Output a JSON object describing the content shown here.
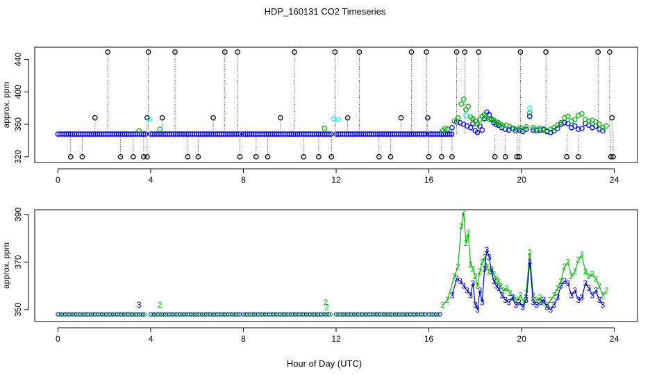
{
  "title": "HDP_160131  CO2 Timeseries",
  "xlabel": "Hour of Day (UTC)",
  "chart_data": [
    {
      "type": "scatter",
      "ylabel": "approx. ppm",
      "xlim": [
        -1,
        25
      ],
      "ylim": [
        313,
        455
      ],
      "xticks": [
        0,
        4,
        8,
        12,
        16,
        20,
        24
      ],
      "yticks": [
        320,
        360,
        400,
        440
      ],
      "drop_lines": true,
      "colors": {
        "outlier": "#000000",
        "baseline": "#0000ff",
        "green": "#00bb00",
        "cyan": "#00ffff"
      },
      "baseline_ppm": 348,
      "baseline_segments": [
        [
          0.0,
          3.8
        ],
        [
          4.0,
          7.9
        ],
        [
          8.0,
          11.8
        ],
        [
          12.0,
          15.9
        ],
        [
          16.0,
          17.0
        ]
      ],
      "outliers_high": [
        2.15,
        3.9,
        5.05,
        7.2,
        7.75,
        10.2,
        11.95,
        13.0,
        15.25,
        15.9,
        17.2,
        17.55,
        18.15,
        19.95,
        21.05,
        23.3,
        23.8
      ],
      "outliers_low": [
        0.55,
        1.05,
        2.7,
        3.25,
        3.7,
        3.85,
        5.6,
        6.05,
        7.85,
        8.55,
        9.05,
        10.6,
        11.25,
        11.8,
        13.85,
        14.35,
        16.0,
        16.55,
        17.0,
        18.85,
        19.3,
        19.8,
        19.9,
        21.95,
        22.45,
        23.85,
        23.95
      ],
      "outliers_mid": [
        {
          "x": 1.6,
          "y": 368
        },
        {
          "x": 4.5,
          "y": 368
        },
        {
          "x": 6.7,
          "y": 368
        },
        {
          "x": 9.6,
          "y": 368
        },
        {
          "x": 12.5,
          "y": 368
        },
        {
          "x": 14.8,
          "y": 368
        },
        {
          "x": 15.95,
          "y": 368
        },
        {
          "x": 3.85,
          "y": 368
        },
        {
          "x": 23.9,
          "y": 368
        }
      ],
      "cyan_points": [
        {
          "x": 3.95,
          "y": 366
        },
        {
          "x": 12.1,
          "y": 366
        },
        {
          "x": 11.9,
          "y": 367
        },
        {
          "x": 20.35,
          "y": 380
        },
        {
          "x": 17.6,
          "y": 371
        }
      ],
      "green_small": [
        {
          "x": 4.4,
          "y": 354
        },
        {
          "x": 11.5,
          "y": 355
        },
        {
          "x": 16.7,
          "y": 355
        },
        {
          "x": 3.5,
          "y": 352
        }
      ]
    },
    {
      "type": "line",
      "ylabel": "approx. ppm",
      "xlim": [
        -1,
        25
      ],
      "ylim": [
        345,
        392
      ],
      "xticks": [
        0,
        4,
        8,
        12,
        16,
        20,
        24
      ],
      "yticks": [
        350,
        370,
        390
      ],
      "series": [
        {
          "name": "2",
          "color": "#00bb00",
          "x": [
            16.6,
            16.8,
            17.1,
            17.25,
            17.4,
            17.5,
            17.6,
            17.7,
            17.8,
            17.9,
            18.0,
            18.1,
            18.2,
            18.3,
            18.4,
            18.5,
            18.6,
            18.7,
            18.8,
            18.9,
            19.0,
            19.1,
            19.2,
            19.35,
            19.5,
            19.65,
            19.8,
            19.95,
            20.1,
            20.2,
            20.35,
            20.5,
            20.65,
            20.8,
            20.95,
            21.1,
            21.25,
            21.4,
            21.55,
            21.7,
            21.85,
            22.0,
            22.15,
            22.3,
            22.45,
            22.6,
            22.75,
            22.9,
            23.05,
            23.2,
            23.35,
            23.5,
            23.65
          ],
          "y": [
            352,
            354,
            364,
            368,
            385,
            391,
            378,
            382,
            369,
            367,
            364,
            360,
            366,
            370,
            372,
            368,
            366,
            367,
            365,
            363,
            362,
            360,
            358,
            359,
            357,
            355,
            354,
            356,
            353,
            357,
            374,
            356,
            354,
            355,
            353,
            352,
            354,
            356,
            359,
            362,
            368,
            370,
            364,
            366,
            371,
            373,
            366,
            364,
            365,
            363,
            360,
            356,
            358
          ]
        },
        {
          "name": "3",
          "color": "#0000cc",
          "x": [
            17.0,
            17.2,
            17.35,
            17.5,
            17.65,
            17.8,
            17.9,
            18.0,
            18.1,
            18.2,
            18.3,
            18.4,
            18.5,
            18.6,
            18.7,
            18.8,
            18.9,
            19.0,
            19.15,
            19.3,
            19.45,
            19.6,
            19.75,
            19.9,
            20.05,
            20.2,
            20.35,
            20.5,
            20.65,
            20.8,
            20.95,
            21.1,
            21.25,
            21.4,
            21.55,
            21.7,
            21.85,
            22.0,
            22.15,
            22.3,
            22.45,
            22.6,
            22.75,
            22.9,
            23.05,
            23.2,
            23.35,
            23.5
          ],
          "y": [
            356,
            363,
            362,
            360,
            358,
            356,
            361,
            352,
            350,
            358,
            353,
            367,
            375,
            372,
            366,
            362,
            360,
            359,
            356,
            354,
            353,
            355,
            352,
            353,
            351,
            354,
            370,
            353,
            352,
            353,
            354,
            351,
            350,
            352,
            355,
            360,
            362,
            361,
            356,
            358,
            354,
            355,
            361,
            359,
            356,
            358,
            354,
            352
          ]
        }
      ],
      "flat_baseline": {
        "value": 348,
        "segments": [
          [
            0.0,
            3.8
          ],
          [
            4.0,
            7.9
          ],
          [
            8.0,
            11.8
          ],
          [
            12.0,
            15.9
          ],
          [
            16.0,
            16.5
          ]
        ],
        "color": "#0000cc",
        "second_color": "#00bb00"
      },
      "annotations": [
        {
          "x": 3.5,
          "y": 352,
          "label": "3",
          "color": "#0000cc"
        },
        {
          "x": 4.4,
          "y": 352,
          "label": "2",
          "color": "#00bb00"
        },
        {
          "x": 11.55,
          "y": 353,
          "label": "2",
          "color": "#00bb00"
        },
        {
          "x": 11.6,
          "y": 351,
          "label": "2",
          "color": "#00bb00"
        }
      ]
    }
  ]
}
